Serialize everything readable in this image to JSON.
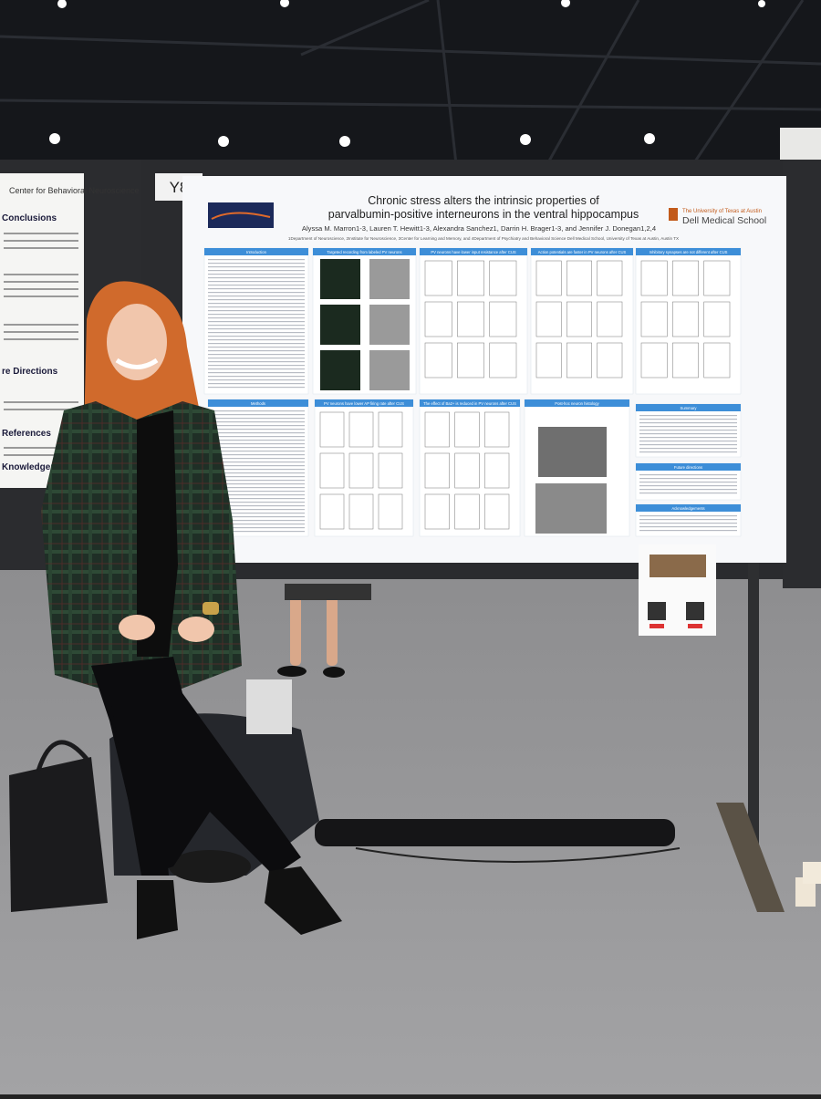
{
  "board_label": "Y8",
  "poster": {
    "title_line1": "Chronic stress alters the intrinsic properties of",
    "title_line2": "parvalbumin-positive interneurons in the ventral hippocampus",
    "authors": "Alyssa M. Marron1-3, Lauren T. Hewitt1-3, Alexandra Sanchez1, Darrin H. Brager1-3, and Jennifer J. Donegan1,2,4",
    "affiliations": "1Department of Neuroscience, 2Institute for Neuroscience, 3Center for Learning and Memory, and 4Department of Psychiatry and Behavioral Science Dell Medical School, University of Texas at Austin, Austin TX",
    "institution": "The University of Texas at Austin",
    "school": "Dell Medical School",
    "sections": [
      "Introduction",
      "Targeted recording from labeled PV neurons",
      "PV neurons have lower input resistance after CUS",
      "Action potentials are faster in PV neurons after CUS",
      "Inhibitory synapses are not different after CUS",
      "Methods",
      "PV neurons have lower AP firing rate after CUS",
      "The effect of Ba2+ is reduced in PV neurons after CUS",
      "Post-hoc neuron histology",
      "Summary",
      "Future directions",
      "Acknowledgements"
    ]
  },
  "left_poster": {
    "logo": "Center for Behavioral Neuroscience",
    "headings": [
      "Conclusions",
      "re Directions",
      "References",
      "Knowledgements"
    ]
  }
}
